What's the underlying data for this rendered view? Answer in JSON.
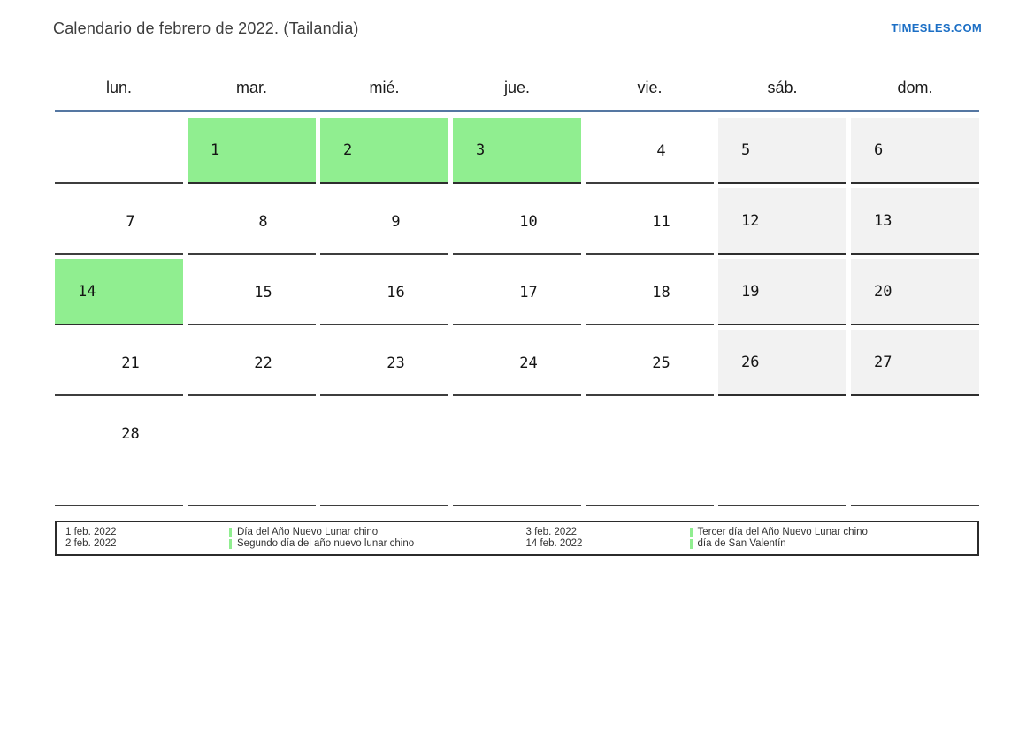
{
  "header": {
    "title": "Calendario de febrero de 2022. (Tailandia)",
    "site_link": "TIMESLES.COM"
  },
  "colors": {
    "holiday_green": "#90ee90",
    "weekend_gray": "#f2f2f2",
    "header_line_blue": "#5577a2",
    "link_blue": "#1c6fc5",
    "cell_border": "#3e3e3e"
  },
  "calendar": {
    "weekdays": [
      "lun.",
      "mar.",
      "mié.",
      "jue.",
      "vie.",
      "sáb.",
      "dom."
    ],
    "weeks": [
      [
        {
          "day": "",
          "type": "empty"
        },
        {
          "day": "1",
          "type": "holiday"
        },
        {
          "day": "2",
          "type": "holiday"
        },
        {
          "day": "3",
          "type": "holiday"
        },
        {
          "day": "4",
          "type": "weekday"
        },
        {
          "day": "5",
          "type": "weekend"
        },
        {
          "day": "6",
          "type": "weekend"
        }
      ],
      [
        {
          "day": "7",
          "type": "weekday"
        },
        {
          "day": "8",
          "type": "weekday"
        },
        {
          "day": "9",
          "type": "weekday"
        },
        {
          "day": "10",
          "type": "weekday"
        },
        {
          "day": "11",
          "type": "weekday"
        },
        {
          "day": "12",
          "type": "weekend"
        },
        {
          "day": "13",
          "type": "weekend"
        }
      ],
      [
        {
          "day": "14",
          "type": "holiday"
        },
        {
          "day": "15",
          "type": "weekday"
        },
        {
          "day": "16",
          "type": "weekday"
        },
        {
          "day": "17",
          "type": "weekday"
        },
        {
          "day": "18",
          "type": "weekday"
        },
        {
          "day": "19",
          "type": "weekend"
        },
        {
          "day": "20",
          "type": "weekend"
        }
      ],
      [
        {
          "day": "21",
          "type": "weekday"
        },
        {
          "day": "22",
          "type": "weekday"
        },
        {
          "day": "23",
          "type": "weekday"
        },
        {
          "day": "24",
          "type": "weekday"
        },
        {
          "day": "25",
          "type": "weekday"
        },
        {
          "day": "26",
          "type": "weekend"
        },
        {
          "day": "27",
          "type": "weekend"
        }
      ],
      [
        {
          "day": "28",
          "type": "weekday"
        },
        {
          "day": "",
          "type": "empty"
        },
        {
          "day": "",
          "type": "empty"
        },
        {
          "day": "",
          "type": "empty"
        },
        {
          "day": "",
          "type": "empty"
        },
        {
          "day": "",
          "type": "empty"
        },
        {
          "day": "",
          "type": "empty"
        }
      ]
    ]
  },
  "legend": {
    "entries": [
      {
        "date": "1 feb. 2022",
        "name": "Día del Año Nuevo Lunar chino"
      },
      {
        "date": "2 feb. 2022",
        "name": "Segundo día del año nuevo lunar chino"
      },
      {
        "date": "3 feb. 2022",
        "name": "Tercer día del Año Nuevo Lunar chino"
      },
      {
        "date": "14 feb. 2022",
        "name": "día de San Valentín"
      }
    ]
  }
}
